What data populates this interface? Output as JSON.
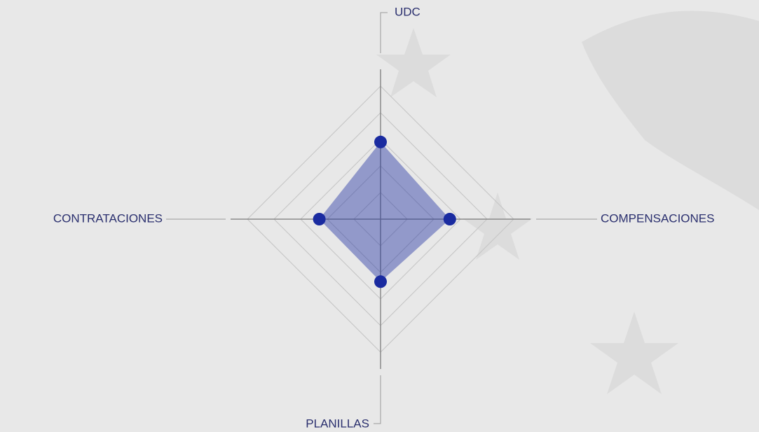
{
  "chart_data": {
    "type": "radar",
    "categories": [
      "UDC",
      "COMPENSACIONES",
      "PLANILLAS",
      "CONTRATACIONES"
    ],
    "series": [
      {
        "color": "#1a2ba0",
        "values": [
          58,
          52,
          47,
          46
        ]
      }
    ],
    "rlim": [
      0,
      100
    ],
    "rticks": [
      20,
      40,
      60,
      80,
      100
    ],
    "grid": true
  }
}
